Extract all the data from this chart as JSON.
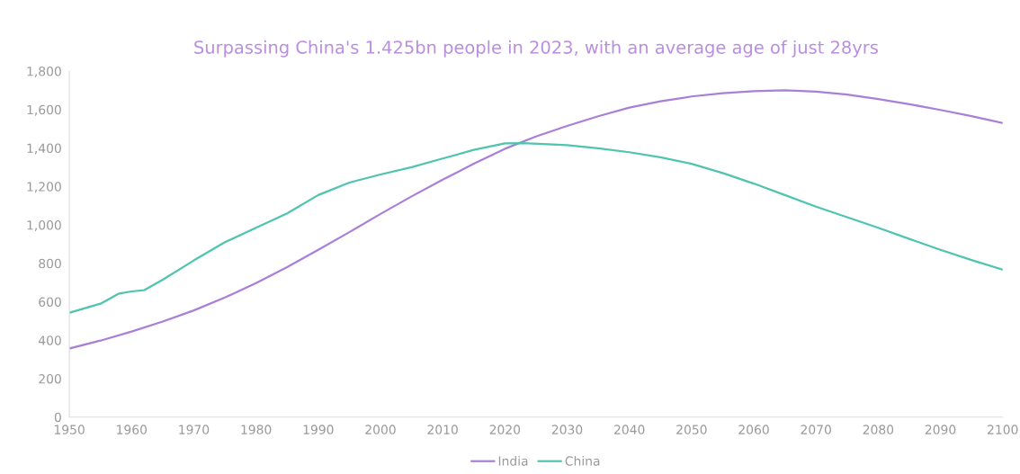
{
  "chart_data": {
    "type": "line",
    "title": "Surpassing China's 1.425bn people in 2023, with an average age of just 28yrs",
    "series": [
      {
        "name": "India",
        "color": "#a97fd8",
        "x": [
          1950,
          1955,
          1960,
          1965,
          1970,
          1975,
          1980,
          1985,
          1990,
          1995,
          2000,
          2005,
          2010,
          2015,
          2020,
          2025,
          2030,
          2035,
          2040,
          2045,
          2050,
          2055,
          2060,
          2065,
          2070,
          2075,
          2080,
          2085,
          2090,
          2095,
          2100
        ],
        "values": [
          357,
          398,
          445,
          497,
          555,
          622,
          697,
          780,
          870,
          962,
          1057,
          1148,
          1235,
          1318,
          1396,
          1460,
          1515,
          1565,
          1610,
          1643,
          1668,
          1685,
          1696,
          1700,
          1693,
          1678,
          1655,
          1628,
          1598,
          1566,
          1530
        ]
      },
      {
        "name": "China",
        "color": "#4fc4ae",
        "x": [
          1950,
          1955,
          1958,
          1960,
          1962,
          1965,
          1970,
          1975,
          1980,
          1985,
          1990,
          1995,
          2000,
          2005,
          2010,
          2015,
          2020,
          2023,
          2030,
          2035,
          2040,
          2045,
          2050,
          2055,
          2060,
          2065,
          2070,
          2075,
          2080,
          2085,
          2090,
          2095,
          2100
        ],
        "values": [
          543,
          590,
          643,
          654,
          660,
          715,
          815,
          910,
          985,
          1060,
          1155,
          1220,
          1262,
          1300,
          1345,
          1390,
          1424,
          1425,
          1415,
          1398,
          1378,
          1352,
          1318,
          1270,
          1215,
          1155,
          1095,
          1040,
          985,
          927,
          870,
          817,
          767
        ]
      }
    ],
    "xlim": [
      1950,
      2100
    ],
    "xticks": [
      1950,
      1960,
      1970,
      1980,
      1990,
      2000,
      2010,
      2020,
      2030,
      2040,
      2050,
      2060,
      2070,
      2080,
      2090,
      2100
    ],
    "ylim": [
      0,
      1800
    ],
    "yticks": [
      {
        "value": 0,
        "label": "0"
      },
      {
        "value": 200,
        "label": "200"
      },
      {
        "value": 400,
        "label": "400"
      },
      {
        "value": 600,
        "label": "600"
      },
      {
        "value": 800,
        "label": "800"
      },
      {
        "value": 1000,
        "label": "1,000"
      },
      {
        "value": 1200,
        "label": "1,200"
      },
      {
        "value": 1400,
        "label": "1,400"
      },
      {
        "value": 1600,
        "label": "1,600"
      },
      {
        "value": 1800,
        "label": "1,800"
      }
    ],
    "grid": false,
    "legend": "bottom",
    "marker": "none",
    "line_style": "solid"
  }
}
